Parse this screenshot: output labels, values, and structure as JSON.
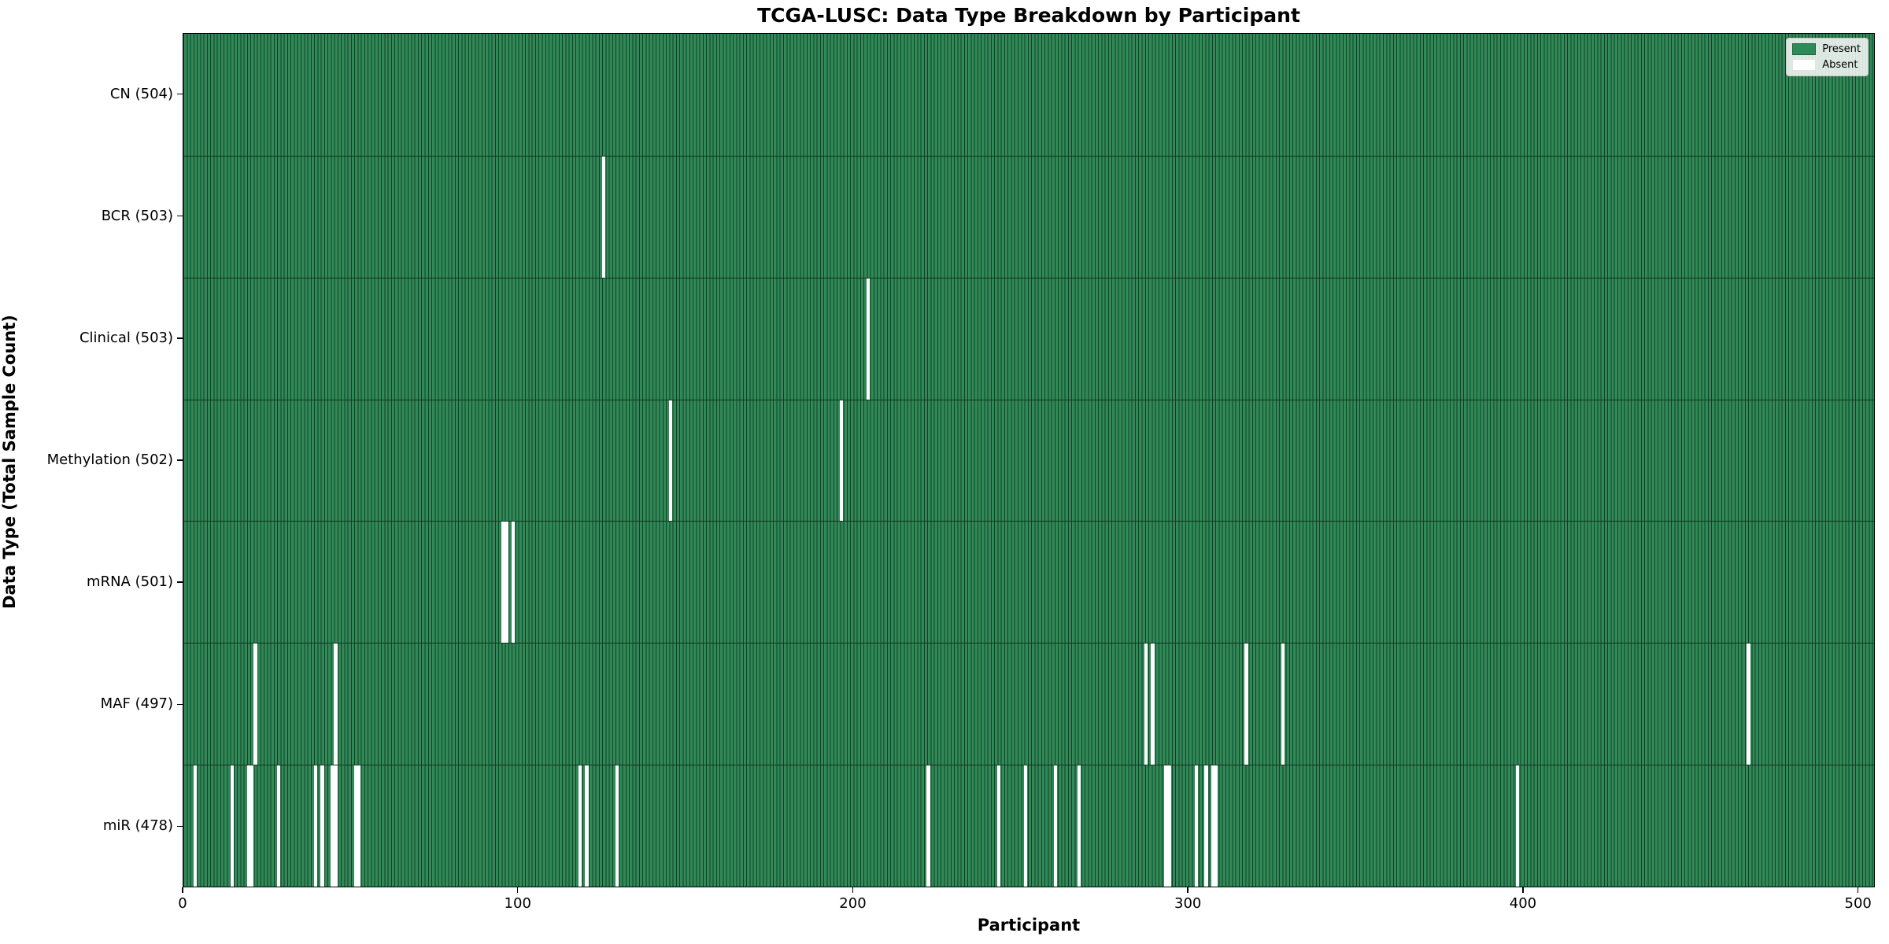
{
  "title": "TCGA-LUSC: Data Type Breakdown by Participant",
  "chart_data": {
    "type": "heatmap",
    "title": "TCGA-LUSC: Data Type Breakdown by Participant",
    "xlabel": "Participant",
    "ylabel": "Data Type (Total Sample Count)",
    "x_ticks": [
      0,
      100,
      200,
      300,
      400,
      500
    ],
    "x_range": [
      0,
      505
    ],
    "total_participants": 504,
    "grid": false,
    "colors": {
      "present": "#2e8b57",
      "absent": "#ffffff",
      "bar_edge": "#1b3b29",
      "axis": "#000000"
    },
    "legend": {
      "position": "upper right",
      "entries": [
        {
          "label": "Present",
          "color": "#2e8b57"
        },
        {
          "label": "Absent",
          "color": "#ffffff"
        }
      ]
    },
    "rows": [
      {
        "label": "CN (504)",
        "data_type": "CN",
        "present_count": 504,
        "absent_participants": []
      },
      {
        "label": "BCR (503)",
        "data_type": "BCR",
        "present_count": 503,
        "absent_participants": [
          125
        ]
      },
      {
        "label": "Clinical (503)",
        "data_type": "Clinical",
        "present_count": 503,
        "absent_participants": [
          204
        ]
      },
      {
        "label": "Methylation (502)",
        "data_type": "Methylation",
        "present_count": 502,
        "absent_participants": [
          145,
          196
        ]
      },
      {
        "label": "mRNA (501)",
        "data_type": "mRNA",
        "present_count": 501,
        "absent_participants": [
          95,
          96,
          98
        ]
      },
      {
        "label": "MAF (497)",
        "data_type": "MAF",
        "present_count": 497,
        "absent_participants": [
          21,
          45,
          287,
          289,
          317,
          328,
          467
        ]
      },
      {
        "label": "miR (478)",
        "data_type": "miR",
        "present_count": 478,
        "absent_participants": [
          3,
          14,
          19,
          20,
          28,
          39,
          41,
          44,
          45,
          51,
          52,
          118,
          120,
          129,
          222,
          243,
          251,
          260,
          267,
          293,
          294,
          302,
          305,
          307,
          308,
          398
        ]
      }
    ]
  }
}
